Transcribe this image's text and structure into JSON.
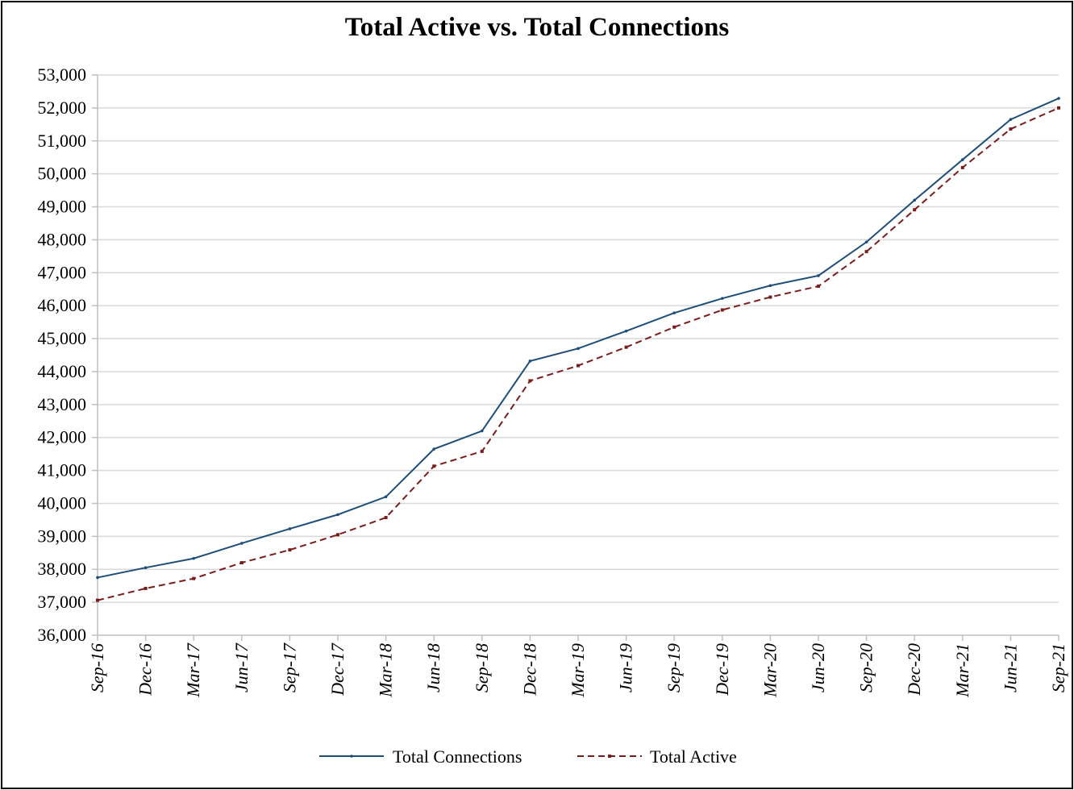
{
  "chart_data": {
    "type": "line",
    "title": "Total Active vs. Total Connections",
    "xlabel": "",
    "ylabel": "",
    "categories": [
      "Sep-16",
      "Dec-16",
      "Mar-17",
      "Jun-17",
      "Sep-17",
      "Dec-17",
      "Mar-18",
      "Jun-18",
      "Sep-18",
      "Dec-18",
      "Mar-19",
      "Jun-19",
      "Sep-19",
      "Dec-19",
      "Mar-20",
      "Jun-20",
      "Sep-20",
      "Dec-20",
      "Mar-21",
      "Jun-21",
      "Sep-21"
    ],
    "ylim": [
      36000,
      53000
    ],
    "yticks": [
      "36,000",
      "37,000",
      "38,000",
      "39,000",
      "40,000",
      "41,000",
      "42,000",
      "43,000",
      "44,000",
      "45,000",
      "46,000",
      "47,000",
      "48,000",
      "49,000",
      "50,000",
      "51,000",
      "52,000",
      "53,000"
    ],
    "grid": true,
    "legend": "bottom",
    "series": [
      {
        "name": "Total Connections",
        "color": "#1f4e79",
        "dash": "solid",
        "values": [
          37750,
          38050,
          38330,
          38790,
          39230,
          39660,
          40200,
          41650,
          42200,
          44320,
          44700,
          45230,
          45780,
          46220,
          46610,
          46910,
          47930,
          49200,
          50430,
          51650,
          52290
        ]
      },
      {
        "name": "Total Active",
        "color": "#7b1c1c",
        "dash": "dashed",
        "values": [
          37060,
          37420,
          37720,
          38200,
          38590,
          39050,
          39570,
          41130,
          41580,
          43720,
          44180,
          44740,
          45350,
          45870,
          46260,
          46590,
          47640,
          48910,
          50190,
          51360,
          52000
        ]
      }
    ]
  }
}
